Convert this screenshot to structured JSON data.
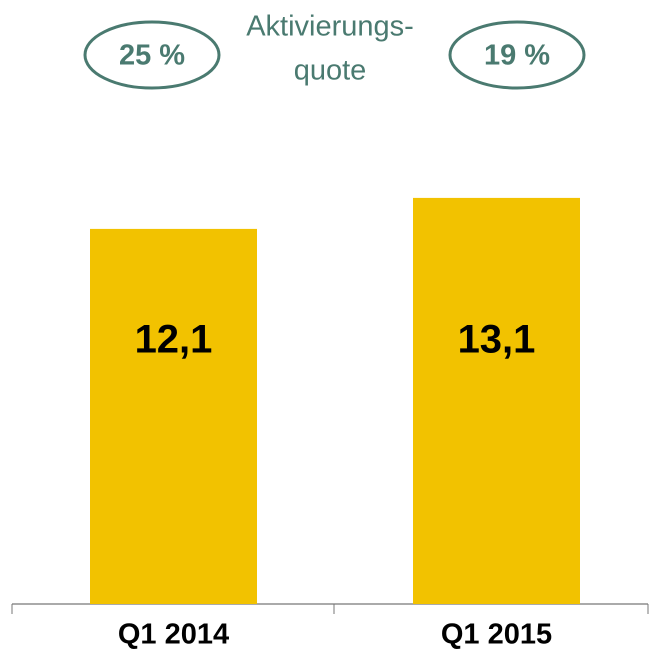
{
  "chart_data": {
    "type": "bar",
    "categories": [
      "Q1 2014",
      "Q1 2015"
    ],
    "values": [
      12.1,
      13.1
    ],
    "value_labels": [
      "12,1",
      "13,1"
    ],
    "color": "#f2c200",
    "activation_rate": {
      "label_lines": [
        "Aktivierungs-",
        "quote"
      ],
      "values": [
        25,
        19
      ],
      "value_labels": [
        "25 %",
        "19 %"
      ],
      "color": "#4a7a70"
    }
  }
}
